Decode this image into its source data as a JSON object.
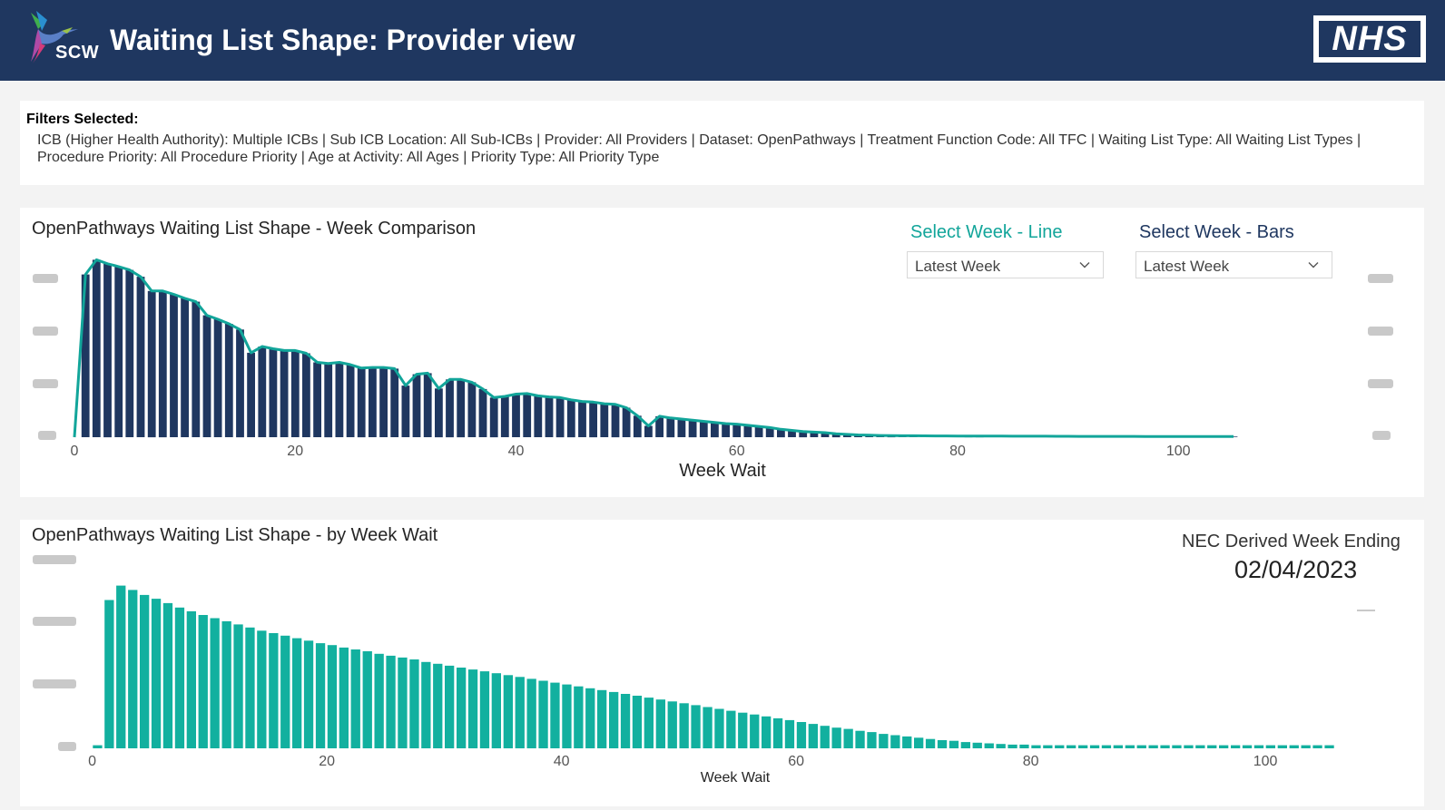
{
  "header": {
    "logo_text": "SCW",
    "title": "Waiting List Shape: Provider view",
    "brand_logo": "NHS"
  },
  "filters": {
    "label": "Filters Selected:",
    "text": "ICB (Higher Health Authority): Multiple ICBs | Sub ICB Location: All Sub-ICBs | Provider: All Providers | Dataset: OpenPathways | Treatment Function Code: All TFC | Waiting List Type: All Waiting List Types | Procedure Priority: All Procedure Priority | Age at Activity: All Ages | Priority Type: All Priority Type"
  },
  "comparison": {
    "title": "OpenPathways Waiting List Shape - Week Comparison",
    "slicer_line": {
      "label": "Select Week - Line",
      "value": "Latest Week",
      "icon": "chevron-down-icon"
    },
    "slicer_bars": {
      "label": "Select Week - Bars",
      "value": "Latest Week",
      "icon": "chevron-down-icon"
    }
  },
  "byweek": {
    "title": "OpenPathways Waiting List Shape - by Week Wait",
    "card_label": "NEC Derived Week Ending",
    "card_value": "02/04/2023"
  },
  "colors": {
    "header_bg": "#1f3760",
    "bars_navy": "#1f3760",
    "line_teal": "#12a59a",
    "bars_teal": "#12b09f",
    "slicer_line_label": "#12a59a",
    "slicer_bars_label": "#1f3760"
  },
  "chart_data": [
    {
      "type": "bar",
      "title": "OpenPathways Waiting List Shape - Week Comparison",
      "xlabel": "Week Wait",
      "ylabel": "",
      "x_ticks": [
        0,
        20,
        40,
        60,
        80,
        100
      ],
      "xlim": [
        0,
        105
      ],
      "ylim": [
        0,
        32
      ],
      "y_tick_labels_obscured": true,
      "grid": false,
      "series": [
        {
          "name": "Select Week - Bars",
          "type": "bar",
          "x": [
            1,
            2,
            3,
            4,
            5,
            6,
            7,
            8,
            9,
            10,
            11,
            12,
            13,
            14,
            15,
            16,
            17,
            18,
            19,
            20,
            21,
            22,
            23,
            24,
            25,
            26,
            27,
            28,
            29,
            30,
            31,
            32,
            33,
            34,
            35,
            36,
            37,
            38,
            39,
            40,
            41,
            42,
            43,
            44,
            45,
            46,
            47,
            48,
            49,
            50,
            51,
            52,
            53,
            54,
            55,
            56,
            57,
            58,
            59,
            60,
            61,
            62,
            63,
            64,
            65,
            66,
            67,
            68,
            69,
            70,
            71,
            72,
            73,
            74,
            75,
            76,
            77,
            78,
            79,
            80,
            81,
            82,
            83,
            84,
            85,
            86,
            87,
            88,
            89,
            90,
            91,
            92,
            93,
            94,
            95,
            96,
            97,
            98,
            99,
            100,
            101,
            102,
            103,
            104,
            105
          ],
          "values": [
            28.7,
            31.3,
            30.6,
            30.1,
            29.5,
            28.3,
            25.8,
            25.8,
            25.2,
            24.5,
            23.9,
            21.5,
            20.8,
            20.0,
            19.0,
            14.9,
            16.0,
            15.6,
            15.3,
            15.3,
            14.8,
            13.2,
            13.0,
            13.2,
            12.8,
            12.2,
            12.3,
            12.3,
            12.1,
            9.1,
            11.1,
            11.3,
            8.6,
            10.2,
            10.2,
            9.7,
            8.5,
            7.0,
            7.2,
            7.6,
            7.7,
            7.3,
            7.1,
            7.0,
            6.6,
            6.3,
            6.2,
            5.9,
            5.8,
            5.2,
            3.8,
            2.0,
            3.7,
            3.4,
            3.2,
            3.0,
            2.8,
            2.6,
            2.4,
            2.3,
            2.1,
            1.9,
            1.7,
            1.4,
            1.2,
            1.0,
            0.9,
            0.8,
            0.6,
            0.5,
            0.4,
            0.35,
            0.3,
            0.28,
            0.26,
            0.25,
            0.24,
            0.23,
            0.22,
            0.21,
            0.2,
            0.2,
            0.19,
            0.19,
            0.18,
            0.18,
            0.17,
            0.17,
            0.16,
            0.16,
            0.15,
            0.15,
            0.15,
            0.14,
            0.14,
            0.14,
            0.13,
            0.13,
            0.13,
            0.12,
            0.12,
            0.12,
            0.12,
            0.11,
            0.11
          ]
        },
        {
          "name": "Select Week - Line",
          "type": "line",
          "x": [
            0,
            1,
            2,
            3,
            4,
            5,
            6,
            7,
            8,
            9,
            10,
            11,
            12,
            13,
            14,
            15,
            16,
            17,
            18,
            19,
            20,
            21,
            22,
            23,
            24,
            25,
            26,
            27,
            28,
            29,
            30,
            31,
            32,
            33,
            34,
            35,
            36,
            37,
            38,
            39,
            40,
            41,
            42,
            43,
            44,
            45,
            46,
            47,
            48,
            49,
            50,
            51,
            52,
            53,
            54,
            55,
            56,
            57,
            58,
            59,
            60,
            61,
            62,
            63,
            64,
            65,
            66,
            67,
            68,
            69,
            70,
            71,
            72,
            73,
            74,
            75,
            76,
            77,
            78,
            79,
            80,
            81,
            82,
            83,
            84,
            85,
            86,
            87,
            88,
            89,
            90,
            91,
            92,
            93,
            94,
            95,
            96,
            97,
            98,
            99,
            100,
            101,
            102,
            103,
            104,
            105
          ],
          "values": [
            0.0,
            28.7,
            31.3,
            30.6,
            30.1,
            29.5,
            28.3,
            25.8,
            25.8,
            25.2,
            24.5,
            23.9,
            21.5,
            20.8,
            20.0,
            19.0,
            14.9,
            16.0,
            15.6,
            15.3,
            15.3,
            14.8,
            13.2,
            13.0,
            13.2,
            12.8,
            12.2,
            12.3,
            12.3,
            12.1,
            9.1,
            11.1,
            11.3,
            8.6,
            10.2,
            10.2,
            9.7,
            8.5,
            7.0,
            7.2,
            7.6,
            7.7,
            7.3,
            7.1,
            7.0,
            6.6,
            6.3,
            6.2,
            5.9,
            5.8,
            5.2,
            3.8,
            2.0,
            3.7,
            3.4,
            3.2,
            3.0,
            2.8,
            2.6,
            2.4,
            2.3,
            2.1,
            1.9,
            1.7,
            1.4,
            1.2,
            1.0,
            0.9,
            0.8,
            0.6,
            0.5,
            0.4,
            0.35,
            0.3,
            0.28,
            0.26,
            0.25,
            0.24,
            0.23,
            0.22,
            0.21,
            0.2,
            0.2,
            0.19,
            0.19,
            0.18,
            0.18,
            0.17,
            0.17,
            0.16,
            0.16,
            0.15,
            0.15,
            0.15,
            0.14,
            0.14,
            0.14,
            0.13,
            0.13,
            0.13,
            0.12,
            0.12,
            0.12,
            0.12,
            0.11,
            0.11
          ]
        }
      ]
    },
    {
      "type": "bar",
      "title": "OpenPathways Waiting List Shape - by Week Wait",
      "xlabel": "Week Wait",
      "ylabel": "",
      "x_ticks": [
        0,
        20,
        40,
        60,
        80,
        100
      ],
      "xlim": [
        0,
        105
      ],
      "ylim": [
        0,
        3.0
      ],
      "y_tick_labels_obscured": true,
      "grid": false,
      "categories": [
        0,
        1,
        2,
        3,
        4,
        5,
        6,
        7,
        8,
        9,
        10,
        11,
        12,
        13,
        14,
        15,
        16,
        17,
        18,
        19,
        20,
        21,
        22,
        23,
        24,
        25,
        26,
        27,
        28,
        29,
        30,
        31,
        32,
        33,
        34,
        35,
        36,
        37,
        38,
        39,
        40,
        41,
        42,
        43,
        44,
        45,
        46,
        47,
        48,
        49,
        50,
        51,
        52,
        53,
        54,
        55,
        56,
        57,
        58,
        59,
        60,
        61,
        62,
        63,
        64,
        65,
        66,
        67,
        68,
        69,
        70,
        71,
        72,
        73,
        74,
        75,
        76,
        77,
        78,
        79,
        80,
        81,
        82,
        83,
        84,
        85,
        86,
        87,
        88,
        89,
        90,
        91,
        92,
        93,
        94,
        95,
        96,
        97,
        98,
        99,
        100,
        101,
        102,
        103,
        104,
        105
      ],
      "values": [
        0.05,
        2.37,
        2.6,
        2.53,
        2.45,
        2.39,
        2.32,
        2.25,
        2.19,
        2.13,
        2.08,
        2.03,
        1.98,
        1.93,
        1.88,
        1.84,
        1.8,
        1.76,
        1.72,
        1.68,
        1.65,
        1.61,
        1.58,
        1.55,
        1.51,
        1.48,
        1.45,
        1.42,
        1.38,
        1.35,
        1.32,
        1.29,
        1.26,
        1.23,
        1.2,
        1.17,
        1.14,
        1.11,
        1.08,
        1.05,
        1.02,
        0.99,
        0.96,
        0.93,
        0.9,
        0.87,
        0.84,
        0.81,
        0.78,
        0.75,
        0.72,
        0.69,
        0.66,
        0.63,
        0.6,
        0.57,
        0.54,
        0.51,
        0.48,
        0.45,
        0.42,
        0.39,
        0.36,
        0.33,
        0.31,
        0.28,
        0.26,
        0.23,
        0.21,
        0.19,
        0.17,
        0.15,
        0.13,
        0.12,
        0.1,
        0.09,
        0.08,
        0.07,
        0.06,
        0.06,
        0.05,
        0.05,
        0.05,
        0.05,
        0.05,
        0.05,
        0.05,
        0.05,
        0.05,
        0.05,
        0.05,
        0.05,
        0.05,
        0.05,
        0.05,
        0.05,
        0.05,
        0.05,
        0.05,
        0.05,
        0.05,
        0.05,
        0.05,
        0.05,
        0.05,
        0.05
      ]
    }
  ]
}
